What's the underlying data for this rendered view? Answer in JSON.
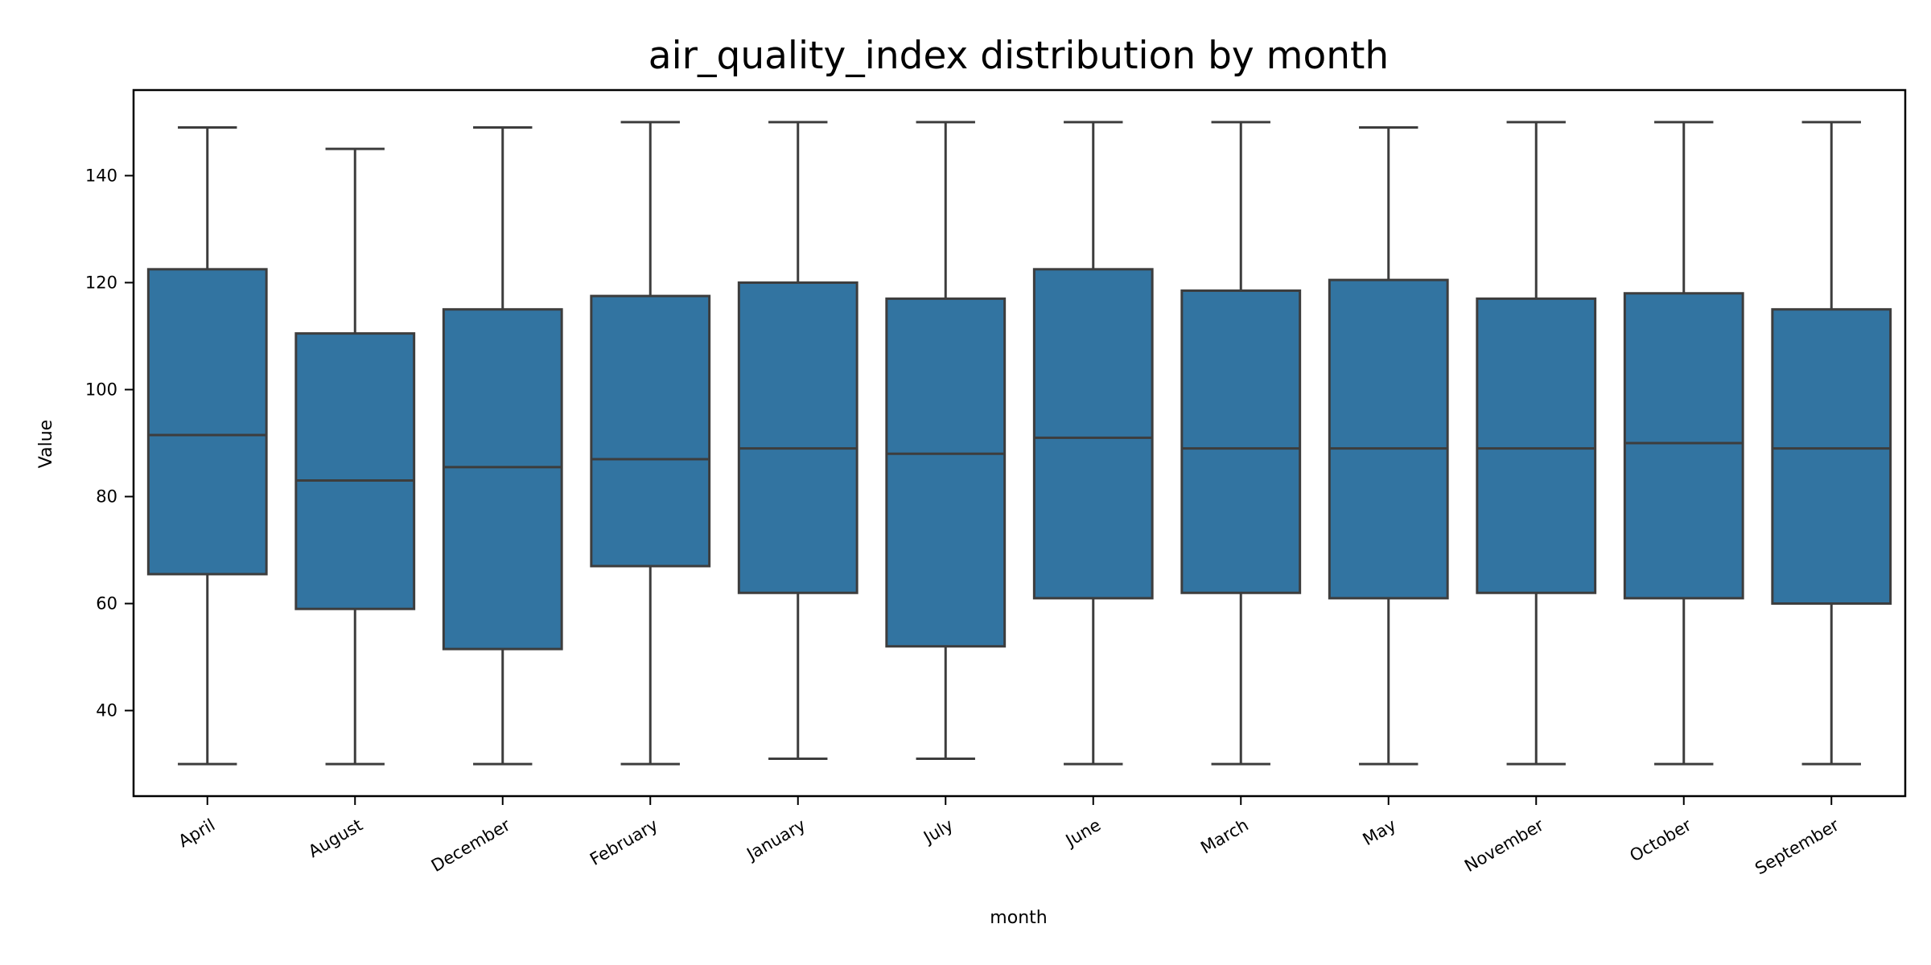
{
  "chart_data": {
    "type": "box",
    "title": "air_quality_index distribution by month",
    "xlabel": "month",
    "ylabel": "Value",
    "ylim": [
      24,
      156
    ],
    "yticks": [
      40,
      60,
      80,
      100,
      120,
      140
    ],
    "box_color": "#3274a1",
    "line_color": "#3d3d3d",
    "categories": [
      "April",
      "August",
      "December",
      "February",
      "January",
      "July",
      "June",
      "March",
      "May",
      "November",
      "October",
      "September"
    ],
    "boxes": [
      {
        "min": 30,
        "q1": 65.5,
        "median": 91.5,
        "q3": 122.5,
        "max": 149
      },
      {
        "min": 30,
        "q1": 59,
        "median": 83,
        "q3": 110.5,
        "max": 145
      },
      {
        "min": 30,
        "q1": 51.5,
        "median": 85.5,
        "q3": 115,
        "max": 149
      },
      {
        "min": 30,
        "q1": 67,
        "median": 87,
        "q3": 117.5,
        "max": 150
      },
      {
        "min": 31,
        "q1": 62,
        "median": 89,
        "q3": 120,
        "max": 150
      },
      {
        "min": 31,
        "q1": 52,
        "median": 88,
        "q3": 117,
        "max": 150
      },
      {
        "min": 30,
        "q1": 61,
        "median": 91,
        "q3": 122.5,
        "max": 150
      },
      {
        "min": 30,
        "q1": 62,
        "median": 89,
        "q3": 118.5,
        "max": 150
      },
      {
        "min": 30,
        "q1": 61,
        "median": 89,
        "q3": 120.5,
        "max": 149
      },
      {
        "min": 30,
        "q1": 62,
        "median": 89,
        "q3": 117,
        "max": 150
      },
      {
        "min": 30,
        "q1": 61,
        "median": 90,
        "q3": 118,
        "max": 150
      },
      {
        "min": 30,
        "q1": 60,
        "median": 89,
        "q3": 115,
        "max": 150
      }
    ]
  }
}
